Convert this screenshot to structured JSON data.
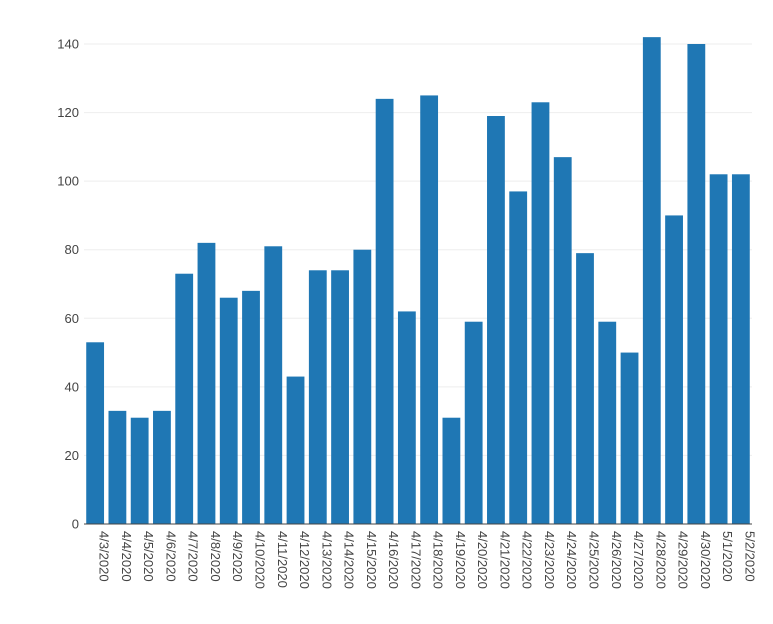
{
  "chart_data": {
    "type": "bar",
    "title": "",
    "xlabel": "",
    "ylabel": "",
    "categories": [
      "4/3/2020",
      "4/4/2020",
      "4/5/2020",
      "4/6/2020",
      "4/7/2020",
      "4/8/2020",
      "4/9/2020",
      "4/10/2020",
      "4/11/2020",
      "4/12/2020",
      "4/13/2020",
      "4/14/2020",
      "4/15/2020",
      "4/16/2020",
      "4/17/2020",
      "4/18/2020",
      "4/19/2020",
      "4/20/2020",
      "4/21/2020",
      "4/22/2020",
      "4/23/2020",
      "4/24/2020",
      "4/25/2020",
      "4/26/2020",
      "4/27/2020",
      "4/28/2020",
      "4/29/2020",
      "4/30/2020",
      "5/1/2020",
      "5/2/2020"
    ],
    "values": [
      53,
      33,
      31,
      33,
      73,
      82,
      66,
      68,
      81,
      43,
      74,
      74,
      80,
      124,
      62,
      125,
      31,
      59,
      119,
      97,
      123,
      107,
      79,
      59,
      50,
      142,
      90,
      140,
      102,
      102
    ],
    "ylim": [
      0,
      147
    ],
    "yticks": [
      0,
      20,
      40,
      60,
      80,
      100,
      120,
      140
    ],
    "grid": true,
    "legend": "none",
    "bar_color": "#1f77b4",
    "grid_color": "#eeeeee",
    "axis_color": "#444444"
  }
}
